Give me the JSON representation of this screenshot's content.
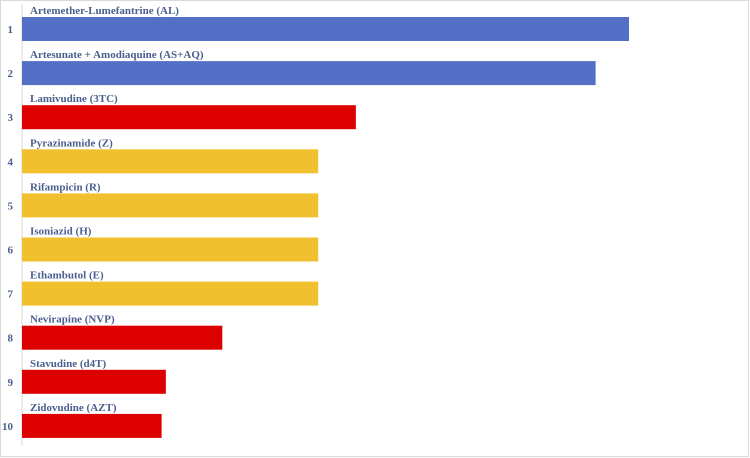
{
  "chart_data": {
    "type": "bar",
    "orientation": "horizontal",
    "title": "",
    "xlabel": "",
    "ylabel": "",
    "xlim": [
      0,
      100
    ],
    "categories": [
      "1",
      "2",
      "3",
      "4",
      "5",
      "6",
      "7",
      "8",
      "9",
      "10"
    ],
    "labels": [
      "Artemether-Lumefantrine (AL)",
      "Artesunate + Amodiaquine (AS+AQ)",
      "Lamivudine (3TC)",
      "Pyrazinamide (Z)",
      "Rifampicin (R)",
      "Isoniazid (H)",
      "Ethambutol (E)",
      "Nevirapine (NVP)",
      "Stavudine (d4T)",
      "Zidovudine (AZT)"
    ],
    "values": [
      100,
      94.5,
      55,
      48.8,
      48.8,
      48.8,
      48.8,
      33,
      23.7,
      23
    ],
    "colors": [
      "#5470c6",
      "#5470c6",
      "#dc0000",
      "#f0c02e",
      "#f0c02e",
      "#f0c02e",
      "#f0c02e",
      "#dc0000",
      "#dc0000",
      "#dc0000"
    ],
    "grid": false,
    "legend": "none"
  }
}
